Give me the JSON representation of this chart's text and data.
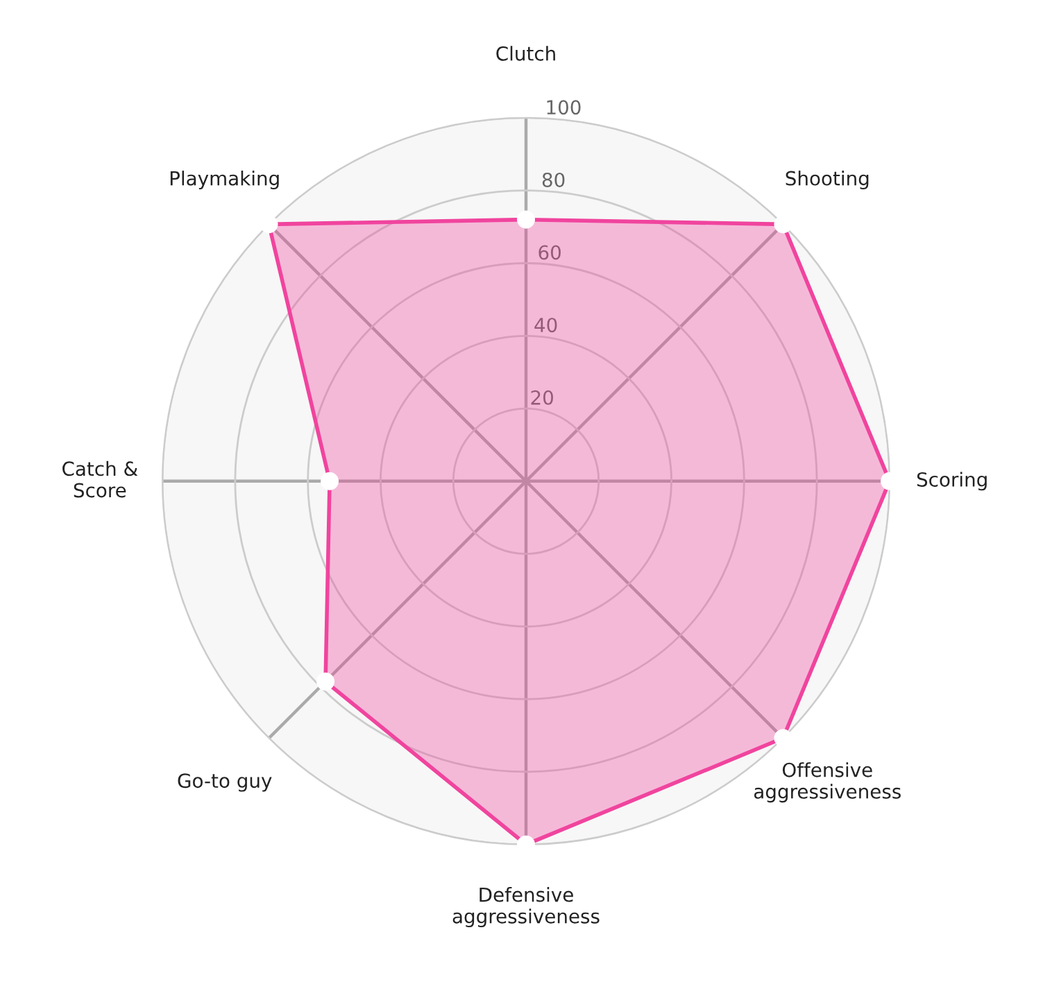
{
  "chart_data": {
    "type": "radar",
    "categories": [
      "Clutch",
      "Shooting",
      "Scoring",
      "Offensive\naggressiveness",
      "Defensive\naggressiveness",
      "Go-to guy",
      "Catch &\nScore",
      "Playmaking"
    ],
    "series": [
      {
        "color": "#f0449e",
        "values": [
          72,
          100,
          100,
          100,
          100,
          78,
          54,
          100
        ]
      }
    ],
    "ylim": [
      0,
      100
    ],
    "yticks": [
      20,
      40,
      60,
      80,
      100
    ],
    "grid": true,
    "marker": "circle"
  }
}
